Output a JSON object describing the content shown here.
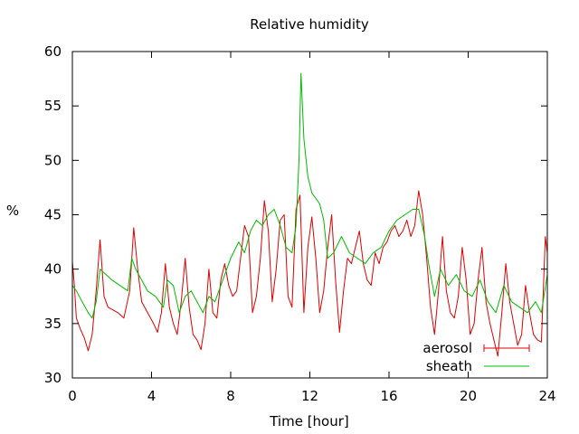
{
  "chart_data": {
    "type": "line",
    "title": "Relative humidity",
    "xlabel": "Time [hour]",
    "ylabel": "%",
    "xlim": [
      0,
      24
    ],
    "ylim": [
      30,
      60
    ],
    "xticks": [
      0,
      4,
      8,
      12,
      16,
      20,
      24
    ],
    "yticks": [
      30,
      35,
      40,
      45,
      50,
      55,
      60
    ],
    "grid": false,
    "legend_position": "bottom-right",
    "series": [
      {
        "name": "aerosol",
        "color": "#dd0000",
        "x": [
          0,
          0.1,
          0.2,
          0.4,
          0.6,
          0.8,
          1.0,
          1.2,
          1.4,
          1.6,
          1.8,
          2.0,
          2.3,
          2.6,
          2.9,
          3.1,
          3.3,
          3.5,
          3.8,
          4.1,
          4.3,
          4.5,
          4.7,
          4.9,
          5.1,
          5.3,
          5.5,
          5.7,
          5.9,
          6.1,
          6.3,
          6.5,
          6.7,
          6.9,
          7.1,
          7.3,
          7.5,
          7.7,
          7.9,
          8.1,
          8.3,
          8.5,
          8.7,
          8.9,
          9.1,
          9.3,
          9.5,
          9.7,
          9.9,
          10.1,
          10.3,
          10.5,
          10.7,
          10.9,
          11.1,
          11.3,
          11.5,
          11.7,
          11.9,
          12.1,
          12.3,
          12.5,
          12.7,
          12.9,
          13.1,
          13.3,
          13.5,
          13.7,
          13.9,
          14.1,
          14.3,
          14.5,
          14.7,
          14.9,
          15.1,
          15.3,
          15.5,
          15.7,
          15.9,
          16.1,
          16.3,
          16.5,
          16.7,
          16.9,
          17.1,
          17.3,
          17.5,
          17.7,
          17.9,
          18.1,
          18.3,
          18.5,
          18.7,
          18.9,
          19.1,
          19.3,
          19.5,
          19.7,
          19.9,
          20.1,
          20.3,
          20.5,
          20.7,
          20.9,
          21.1,
          21.3,
          21.5,
          21.7,
          21.9,
          22.1,
          22.3,
          22.5,
          22.7,
          22.9,
          23.1,
          23.3,
          23.5,
          23.7,
          23.9,
          24.0
        ],
        "values": [
          40.7,
          38.5,
          35.5,
          34.5,
          33.7,
          32.5,
          34.0,
          38.0,
          42.7,
          37.5,
          36.5,
          36.3,
          36.0,
          35.5,
          38.0,
          43.8,
          40.0,
          37.0,
          36.0,
          35.0,
          34.2,
          36.0,
          40.5,
          36.5,
          35.0,
          34.0,
          37.0,
          41.0,
          36.5,
          34.0,
          33.5,
          32.6,
          35.0,
          40.0,
          36.0,
          35.5,
          39.0,
          40.5,
          38.5,
          37.5,
          38.0,
          41.0,
          44.0,
          43.0,
          36.0,
          37.5,
          41.0,
          46.3,
          43.5,
          37.0,
          40.0,
          44.5,
          45.0,
          37.5,
          36.5,
          45.5,
          46.8,
          36.0,
          42.0,
          44.8,
          41.0,
          36.0,
          38.0,
          42.0,
          45.0,
          39.0,
          34.2,
          38.0,
          41.0,
          40.5,
          42.0,
          43.5,
          40.5,
          39.0,
          38.5,
          41.5,
          40.5,
          42.0,
          42.5,
          43.5,
          44.0,
          43.0,
          43.5,
          44.5,
          43.0,
          44.0,
          47.2,
          45.0,
          41.0,
          36.5,
          34.0,
          38.0,
          43.0,
          38.0,
          36.0,
          35.5,
          37.5,
          42.0,
          39.0,
          34.0,
          35.0,
          39.0,
          42.0,
          37.0,
          35.0,
          33.5,
          32.0,
          36.0,
          40.5,
          37.0,
          35.0,
          33.0,
          34.0,
          38.5,
          36.0,
          34.0,
          33.5,
          33.3,
          43.0,
          41.5
        ]
      },
      {
        "name": "sheath",
        "color": "#00bb00",
        "x": [
          0,
          0.2,
          0.5,
          0.8,
          1.0,
          1.2,
          1.4,
          1.7,
          2.0,
          2.4,
          2.8,
          3.0,
          3.2,
          3.5,
          3.8,
          4.2,
          4.6,
          4.8,
          5.1,
          5.4,
          5.7,
          6.0,
          6.3,
          6.6,
          6.9,
          7.2,
          7.6,
          8.0,
          8.4,
          8.7,
          9.0,
          9.3,
          9.6,
          9.9,
          10.2,
          10.5,
          10.8,
          11.1,
          11.3,
          11.45,
          11.55,
          11.7,
          11.9,
          12.1,
          12.3,
          12.5,
          12.7,
          12.9,
          13.2,
          13.6,
          14.0,
          14.4,
          14.8,
          15.2,
          15.6,
          16.0,
          16.4,
          16.8,
          17.2,
          17.5,
          17.8,
          18.0,
          18.3,
          18.6,
          19.0,
          19.4,
          19.8,
          20.2,
          20.6,
          21.0,
          21.4,
          21.8,
          22.2,
          22.6,
          23.0,
          23.4,
          23.7,
          24.0
        ],
        "values": [
          38.5,
          38.0,
          37.0,
          36.0,
          35.5,
          37.0,
          40.0,
          39.5,
          39.0,
          38.5,
          38.0,
          41.0,
          40.0,
          39.0,
          38.0,
          37.5,
          36.5,
          39.0,
          38.5,
          36.0,
          37.5,
          38.0,
          37.0,
          36.0,
          37.5,
          37.0,
          39.0,
          41.0,
          42.5,
          41.5,
          43.5,
          44.5,
          44.0,
          45.0,
          45.5,
          44.0,
          42.0,
          41.5,
          44.0,
          50.0,
          58.0,
          52.0,
          48.5,
          47.0,
          46.5,
          46.0,
          44.5,
          41.0,
          41.5,
          43.0,
          41.5,
          41.0,
          40.5,
          41.5,
          42.0,
          43.5,
          44.5,
          45.0,
          45.5,
          45.5,
          43.0,
          40.5,
          37.5,
          40.0,
          38.5,
          39.5,
          38.0,
          37.5,
          39.0,
          37.0,
          36.0,
          38.5,
          37.0,
          36.5,
          36.0,
          37.0,
          36.0,
          39.5
        ]
      }
    ]
  }
}
